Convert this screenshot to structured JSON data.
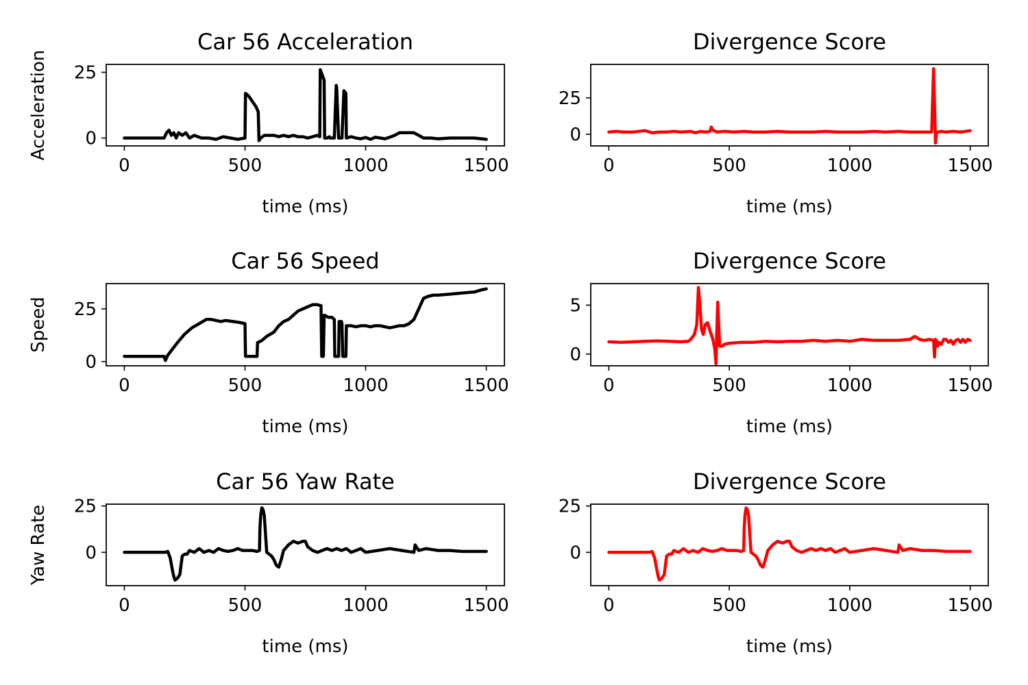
{
  "chart_data": [
    {
      "type": "line",
      "title": "Car 56 Acceleration",
      "xlabel": "time (ms)",
      "ylabel": "Acceleration",
      "xlim": [
        -75,
        1575
      ],
      "ylim": [
        -3,
        28
      ],
      "xticks": [
        0,
        500,
        1000,
        1500
      ],
      "yticks": [
        0,
        25
      ],
      "color": "#000000",
      "series": [
        {
          "x": [
            0,
            165,
            175,
            185,
            195,
            205,
            215,
            225,
            240,
            255,
            270,
            290,
            320,
            350,
            380,
            410,
            440,
            470,
            500,
            502,
            515,
            530,
            545,
            555,
            558,
            565,
            580,
            600,
            620,
            640,
            660,
            680,
            700,
            720,
            740,
            760,
            780,
            800,
            810,
            812,
            820,
            828,
            830,
            838,
            840,
            850,
            852,
            860,
            868,
            870,
            878,
            880,
            888,
            890,
            900,
            902,
            910,
            918,
            920,
            940,
            960,
            980,
            1000,
            1020,
            1040,
            1060,
            1080,
            1100,
            1120,
            1140,
            1160,
            1180,
            1200,
            1220,
            1240,
            1250,
            1270,
            1300,
            1350,
            1400,
            1450,
            1500
          ],
          "y": [
            0,
            0,
            2,
            3,
            1,
            2,
            0,
            2,
            1,
            2,
            0,
            1,
            0,
            0,
            -0.5,
            0.5,
            0,
            -0.5,
            0,
            17,
            16,
            14,
            12,
            10,
            -1,
            0,
            1,
            1,
            1,
            0.5,
            1,
            0.5,
            1,
            0.5,
            0.5,
            0,
            0.5,
            1,
            0.5,
            26,
            24,
            22,
            0,
            0,
            0,
            0.5,
            0,
            0,
            0,
            0,
            20,
            19,
            0,
            0,
            0,
            0,
            18,
            17,
            0,
            0.5,
            0,
            -0.3,
            0.2,
            -0.5,
            0.3,
            0,
            -0.3,
            0.3,
            1,
            2,
            2,
            2,
            2,
            1,
            0,
            0,
            0,
            -0.3,
            0,
            0,
            0,
            -0.5
          ]
        }
      ]
    },
    {
      "type": "line",
      "title": "Divergence Score",
      "xlabel": "time (ms)",
      "ylabel": "",
      "xlim": [
        -75,
        1575
      ],
      "ylim": [
        -8,
        48
      ],
      "xticks": [
        0,
        500,
        1000,
        1500
      ],
      "yticks": [
        0,
        25
      ],
      "color": "#ff0000",
      "series": [
        {
          "x": [
            0,
            30,
            60,
            100,
            150,
            180,
            210,
            240,
            270,
            300,
            340,
            360,
            380,
            400,
            420,
            425,
            430,
            450,
            480,
            520,
            560,
            600,
            650,
            700,
            750,
            800,
            850,
            900,
            950,
            1000,
            1050,
            1100,
            1150,
            1200,
            1250,
            1300,
            1340,
            1348,
            1352,
            1356,
            1360,
            1365,
            1380,
            1400,
            1430,
            1460,
            1480,
            1500
          ],
          "y": [
            1.5,
            2,
            1.5,
            1.5,
            2.5,
            1,
            1.5,
            1.5,
            2,
            1.5,
            2,
            1,
            2,
            1.5,
            2,
            5,
            3,
            1.5,
            2,
            1.5,
            2,
            1.5,
            1.5,
            2,
            1.5,
            1.5,
            1.5,
            2,
            1.5,
            1.5,
            1.5,
            2,
            1.5,
            2,
            1.5,
            1.5,
            1.5,
            45,
            20,
            -6,
            0.5,
            1.5,
            2,
            1.5,
            2,
            1.5,
            2,
            2.5
          ]
        }
      ]
    },
    {
      "type": "line",
      "title": "Car 56 Speed",
      "xlabel": "time (ms)",
      "ylabel": "Speed",
      "xlim": [
        -75,
        1575
      ],
      "ylim": [
        -2,
        37
      ],
      "xticks": [
        0,
        500,
        1000,
        1500
      ],
      "yticks": [
        0,
        25
      ],
      "color": "#000000",
      "series": [
        {
          "x": [
            0,
            165,
            170,
            180,
            200,
            220,
            250,
            280,
            310,
            340,
            360,
            380,
            400,
            420,
            450,
            480,
            500,
            502,
            510,
            540,
            550,
            552,
            570,
            590,
            620,
            640,
            660,
            680,
            700,
            720,
            740,
            760,
            780,
            800,
            815,
            818,
            820,
            825,
            828,
            830,
            845,
            860,
            870,
            872,
            880,
            888,
            890,
            900,
            902,
            905,
            910,
            918,
            920,
            940,
            960,
            980,
            1000,
            1020,
            1040,
            1060,
            1080,
            1100,
            1120,
            1140,
            1160,
            1180,
            1200,
            1220,
            1240,
            1260,
            1280,
            1300,
            1350,
            1400,
            1450,
            1480,
            1500
          ],
          "y": [
            2.5,
            2.5,
            0.5,
            3,
            6,
            9,
            13,
            16,
            18,
            20,
            20,
            19.5,
            19,
            19.5,
            19,
            18.5,
            18,
            2.5,
            2.5,
            2.5,
            2.5,
            9,
            10,
            12,
            14,
            17,
            19,
            20,
            22,
            24,
            25,
            26,
            27,
            27,
            26.5,
            2.5,
            2.5,
            2.5,
            22,
            22,
            21,
            21,
            20,
            2.5,
            2.5,
            2.5,
            19,
            19,
            18,
            2.5,
            2.5,
            2.5,
            17,
            17,
            16.5,
            17,
            17,
            16.5,
            17,
            17,
            16.5,
            16,
            16.5,
            17,
            17,
            18,
            20,
            25,
            30,
            31,
            31.5,
            31.5,
            32,
            32.5,
            33,
            34,
            34.5
          ]
        }
      ]
    },
    {
      "type": "line",
      "title": "Divergence Score",
      "xlabel": "time (ms)",
      "ylabel": "",
      "xlim": [
        -75,
        1575
      ],
      "ylim": [
        -1.2,
        7.2
      ],
      "xticks": [
        0,
        500,
        1000,
        1500
      ],
      "yticks": [
        0,
        5
      ],
      "color": "#ff0000",
      "series": [
        {
          "x": [
            0,
            50,
            100,
            150,
            200,
            250,
            300,
            330,
            340,
            355,
            365,
            372,
            378,
            385,
            392,
            400,
            410,
            418,
            425,
            432,
            440,
            445,
            448,
            452,
            456,
            460,
            470,
            480,
            500,
            550,
            600,
            650,
            700,
            750,
            800,
            850,
            900,
            950,
            1000,
            1050,
            1100,
            1150,
            1200,
            1250,
            1270,
            1290,
            1310,
            1330,
            1348,
            1352,
            1356,
            1360,
            1365,
            1370,
            1380,
            1390,
            1400,
            1410,
            1420,
            1430,
            1440,
            1450,
            1460,
            1470,
            1480,
            1490,
            1500
          ],
          "y": [
            1.25,
            1.2,
            1.25,
            1.3,
            1.35,
            1.3,
            1.25,
            1.3,
            1.5,
            2,
            3,
            6.8,
            5,
            2.5,
            2,
            3,
            3.2,
            2.5,
            2,
            1.5,
            0.5,
            -1,
            2,
            5.3,
            3,
            0.8,
            0.8,
            1,
            1.1,
            1.2,
            1.2,
            1.3,
            1.25,
            1.3,
            1.3,
            1.4,
            1.3,
            1.4,
            1.3,
            1.5,
            1.4,
            1.4,
            1.4,
            1.5,
            1.8,
            1.5,
            1.4,
            1.5,
            1.4,
            -0.3,
            1.5,
            1.4,
            0.8,
            1.2,
            1,
            1.5,
            1.5,
            1.2,
            1.4,
            1,
            1.4,
            1.5,
            1.2,
            1.5,
            1.2,
            1.5,
            1.4
          ]
        }
      ]
    },
    {
      "type": "line",
      "title": "Car 56 Yaw Rate",
      "xlabel": "time (ms)",
      "ylabel": "Yaw Rate",
      "xlim": [
        -75,
        1575
      ],
      "ylim": [
        -18,
        26
      ],
      "xticks": [
        0,
        500,
        1000,
        1500
      ],
      "yticks": [
        0,
        25
      ],
      "color": "#000000",
      "series": [
        {
          "x": [
            0,
            170,
            180,
            190,
            200,
            205,
            210,
            220,
            230,
            240,
            250,
            260,
            270,
            290,
            310,
            330,
            350,
            370,
            390,
            410,
            430,
            450,
            470,
            490,
            510,
            530,
            550,
            560,
            562,
            565,
            570,
            575,
            580,
            585,
            590,
            600,
            610,
            620,
            630,
            640,
            650,
            660,
            680,
            700,
            720,
            740,
            750,
            760,
            780,
            800,
            820,
            840,
            860,
            880,
            900,
            920,
            940,
            960,
            980,
            1000,
            1050,
            1100,
            1150,
            1200,
            1205,
            1210,
            1220,
            1250,
            1300,
            1350,
            1400,
            1450,
            1500
          ],
          "y": [
            0,
            0,
            0.5,
            -3,
            -10,
            -13,
            -15,
            -14,
            -12,
            -2,
            -1,
            -1,
            1,
            0,
            2,
            0,
            1,
            0,
            2,
            1,
            0.5,
            1,
            2,
            1,
            1,
            1,
            0.5,
            1,
            13,
            20,
            24,
            23,
            20,
            10,
            0,
            -1,
            -2,
            -4,
            -7,
            -8,
            -4,
            1,
            4,
            6,
            5,
            6,
            6,
            3,
            1,
            0,
            1,
            2,
            1,
            2,
            1,
            2,
            0,
            1,
            2,
            0,
            1,
            2,
            1,
            0,
            4,
            3,
            1,
            2,
            1,
            1,
            0.5,
            0.5,
            0.5
          ]
        }
      ]
    },
    {
      "type": "line",
      "title": "Divergence Score",
      "xlabel": "time (ms)",
      "ylabel": "",
      "xlim": [
        -75,
        1575
      ],
      "ylim": [
        -18,
        26
      ],
      "xticks": [
        0,
        500,
        1000,
        1500
      ],
      "yticks": [
        0,
        25
      ],
      "color": "#ff0000",
      "series": [
        {
          "x": [
            0,
            170,
            180,
            190,
            200,
            205,
            210,
            220,
            230,
            240,
            250,
            260,
            270,
            290,
            310,
            330,
            350,
            370,
            390,
            410,
            430,
            450,
            470,
            490,
            510,
            530,
            550,
            560,
            562,
            565,
            570,
            575,
            580,
            585,
            590,
            600,
            610,
            620,
            630,
            640,
            650,
            660,
            680,
            700,
            720,
            740,
            750,
            760,
            780,
            800,
            820,
            840,
            860,
            880,
            900,
            920,
            940,
            960,
            980,
            1000,
            1050,
            1100,
            1150,
            1200,
            1205,
            1210,
            1220,
            1250,
            1300,
            1350,
            1400,
            1450,
            1500
          ],
          "y": [
            0,
            0,
            0.5,
            -3,
            -10,
            -13,
            -15,
            -14,
            -12,
            -2,
            -1,
            -1,
            1,
            0,
            2,
            0,
            1,
            0,
            2,
            1,
            0.5,
            1,
            2,
            1,
            1,
            1,
            0.5,
            1,
            13,
            20,
            24,
            23,
            20,
            10,
            0,
            -1,
            -2,
            -4,
            -7,
            -8,
            -4,
            1,
            4,
            6,
            5,
            6,
            6,
            3,
            1,
            0,
            1,
            2,
            1,
            2,
            1,
            2,
            0,
            1,
            2,
            0,
            1,
            2,
            1,
            0,
            4,
            3,
            1,
            2,
            1,
            1,
            0.5,
            0.5,
            0.5
          ]
        }
      ]
    }
  ]
}
